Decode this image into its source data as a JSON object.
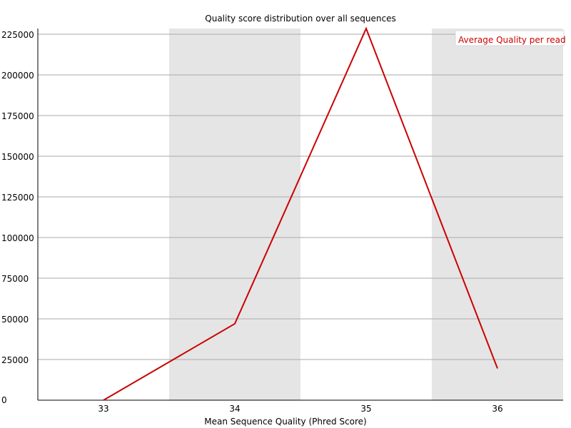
{
  "chart_data": {
    "type": "line",
    "title": "Quality score distribution over all sequences",
    "xlabel": "Mean Sequence Quality (Phred Score)",
    "ylabel": "",
    "categories": [
      "33",
      "34",
      "35",
      "36"
    ],
    "series": [
      {
        "name": "Average Quality per read",
        "values": [
          0,
          47000,
          228500,
          19500
        ],
        "color": "#cc0000"
      }
    ],
    "ylim": [
      0,
      228500
    ],
    "yticks": [
      "0",
      "25000",
      "50000",
      "75000",
      "100000",
      "125000",
      "150000",
      "175000",
      "200000",
      "225000"
    ],
    "grid": true,
    "alternating_bands": true,
    "band_color": "#e5e5e5",
    "legend_position": "top-right"
  }
}
